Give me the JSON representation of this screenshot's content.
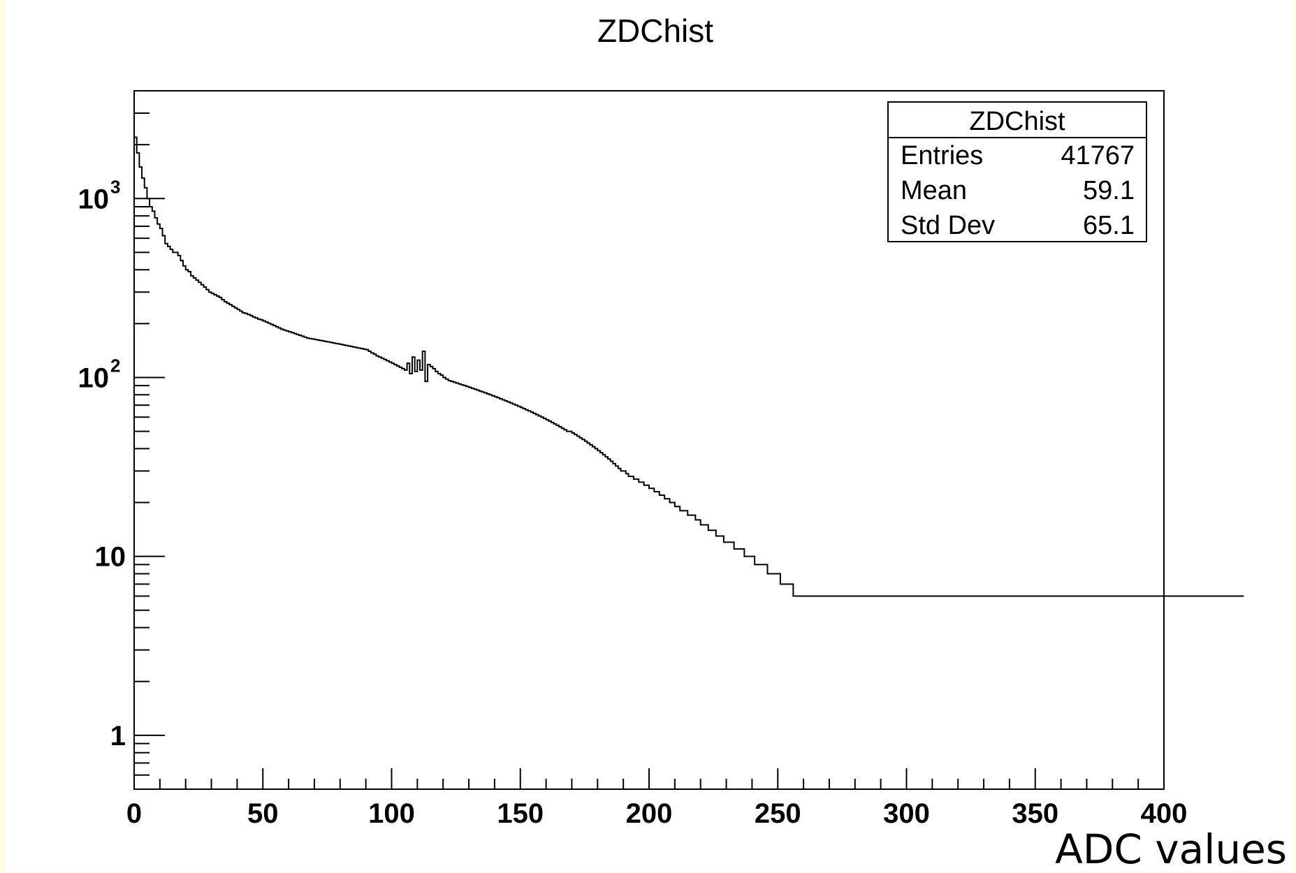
{
  "chart_data": {
    "type": "bar",
    "title": "ZDChist",
    "xlabel": "ADC values",
    "ylabel": "",
    "xlim": [
      0,
      400
    ],
    "ylim": [
      0.5,
      4000
    ],
    "yscale": "log",
    "grid": false,
    "x_ticks": [
      "0",
      "50",
      "100",
      "150",
      "200",
      "250",
      "300",
      "350",
      "400"
    ],
    "y_ticks": [
      {
        "value": 1,
        "label": "1",
        "sup": ""
      },
      {
        "value": 10,
        "label": "10",
        "sup": ""
      },
      {
        "value": 100,
        "label": "10",
        "sup": "2"
      },
      {
        "value": 1000,
        "label": "10",
        "sup": "3"
      }
    ],
    "bin_width": 1,
    "values": [
      2200,
      1800,
      1500,
      1300,
      1150,
      1000,
      900,
      850,
      780,
      720,
      680,
      620,
      560,
      540,
      520,
      500,
      500,
      480,
      450,
      420,
      400,
      390,
      370,
      360,
      350,
      340,
      330,
      320,
      310,
      300,
      295,
      290,
      285,
      280,
      272,
      265,
      260,
      255,
      250,
      245,
      240,
      235,
      230,
      228,
      225,
      222,
      218,
      215,
      212,
      210,
      207,
      204,
      201,
      198,
      195,
      192,
      189,
      186,
      184,
      182,
      180,
      178,
      176,
      174,
      172,
      170,
      168,
      166,
      165,
      164,
      163,
      162,
      161,
      160,
      159,
      158,
      157,
      156,
      155,
      154,
      153,
      152,
      151,
      150,
      149,
      148,
      147,
      146,
      145,
      144,
      143,
      140,
      137,
      135,
      132,
      130,
      128,
      126,
      124,
      122,
      120,
      118,
      116,
      114,
      112,
      110,
      120,
      105,
      130,
      108,
      125,
      110,
      140,
      95,
      118,
      115,
      112,
      108,
      105,
      103,
      100,
      98,
      96,
      95,
      94,
      93,
      92,
      91,
      90,
      89,
      88,
      87,
      86,
      85,
      84,
      83,
      82,
      81,
      80,
      79,
      78,
      77,
      76,
      75,
      74,
      73,
      72,
      71,
      70,
      69,
      68,
      67,
      66,
      65,
      64,
      63,
      62,
      61,
      60,
      59,
      58,
      57,
      56,
      55,
      54,
      53,
      52,
      51,
      50,
      50,
      49,
      48,
      47,
      46,
      45,
      44,
      43,
      42,
      41,
      40,
      39,
      38,
      37,
      36,
      35,
      34,
      33,
      32,
      31,
      30,
      30,
      29,
      28,
      28,
      27,
      27,
      26,
      26,
      25,
      25,
      24,
      24,
      23,
      23,
      22,
      22,
      21,
      21,
      20,
      20,
      19,
      19,
      18,
      18,
      18,
      17,
      17,
      17,
      16,
      16,
      15,
      15,
      15,
      14,
      14,
      14,
      13,
      13,
      13,
      12,
      12,
      12,
      12,
      11,
      11,
      11,
      11,
      10,
      10,
      10,
      10,
      9,
      9,
      9,
      9,
      9,
      8,
      8,
      8,
      8,
      8,
      7,
      7,
      7,
      7,
      7,
      6,
      6,
      6,
      6,
      6,
      6,
      6,
      6,
      6,
      6,
      6,
      6,
      6,
      6,
      6,
      6,
      6,
      6,
      6,
      6,
      6,
      6,
      6,
      6,
      6,
      6,
      6,
      6,
      6,
      6,
      6,
      6,
      6,
      6,
      6,
      6,
      6,
      6,
      6,
      6,
      6,
      6,
      6,
      6,
      6,
      6,
      6,
      6,
      6,
      6,
      6,
      6,
      6,
      6,
      6,
      6,
      6,
      6,
      6,
      6,
      6,
      6,
      6,
      6,
      6,
      6,
      6,
      6,
      6,
      6,
      6,
      6,
      6,
      6,
      6,
      6,
      6,
      6,
      6,
      6,
      6,
      6,
      6,
      6,
      6,
      6,
      6,
      6,
      6,
      6,
      6,
      6,
      6,
      6,
      6,
      6,
      6,
      6,
      6,
      6,
      6,
      6,
      6,
      6,
      6,
      6,
      6,
      6,
      6,
      6,
      6,
      6,
      6,
      6,
      6,
      6,
      6,
      6,
      6,
      6,
      6,
      6,
      6,
      6,
      6,
      6,
      6,
      6,
      6,
      6,
      6,
      6,
      6,
      6,
      6,
      6,
      6,
      6,
      6,
      6,
      6,
      6,
      6,
      6,
      6,
      6,
      6,
      6,
      6,
      6,
      6,
      6,
      6,
      6,
      6,
      6,
      6,
      6,
      6,
      6,
      6,
      6,
      6,
      6,
      6,
      6,
      6,
      6,
      6,
      6,
      6,
      6,
      6,
      6,
      6
    ],
    "stats_box": {
      "title": "ZDChist",
      "rows": [
        {
          "label": "Entries",
          "value": "41767"
        },
        {
          "label": "Mean",
          "value": "59.1"
        },
        {
          "label": "Std Dev",
          "value": "65.1"
        }
      ]
    }
  }
}
